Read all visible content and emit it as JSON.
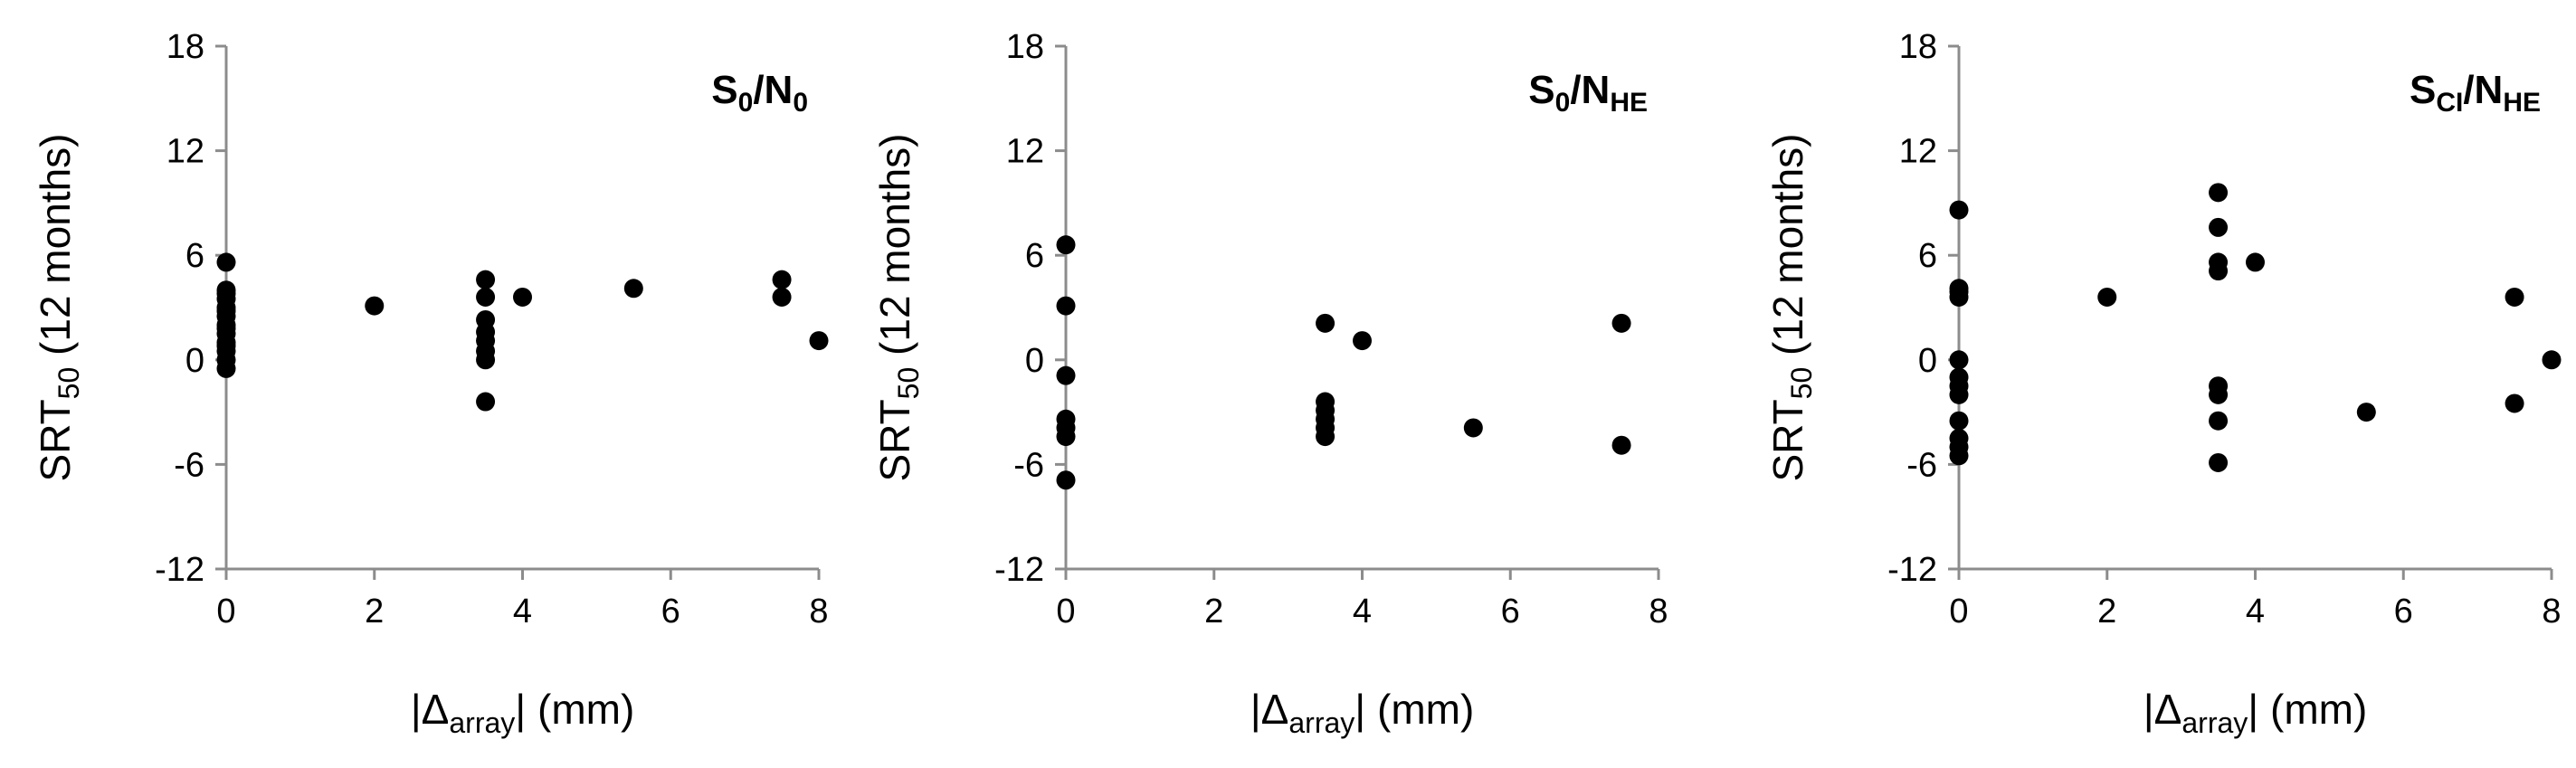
{
  "chart_data": [
    {
      "type": "scatter",
      "panel_label": {
        "base": "S",
        "sub1": "0",
        "sep": "/N",
        "sub2": "0"
      },
      "xlabel": {
        "pre": "|Δ",
        "sub": "array",
        "post": "| (mm)"
      },
      "ylabel": {
        "pre": "SRT",
        "sub": "50",
        "post": " (12 months)"
      },
      "xlim": [
        0,
        8
      ],
      "ylim": [
        -12,
        18
      ],
      "xticks": [
        "0",
        "2",
        "4",
        "6",
        "8"
      ],
      "yticks": [
        "-12",
        "-6",
        "0",
        "6",
        "12",
        "18"
      ],
      "grid": false,
      "legend": false,
      "x": [
        0,
        0,
        0,
        0,
        0,
        0,
        0,
        0,
        0,
        0,
        0,
        0,
        0,
        0,
        0,
        2,
        3.5,
        3.5,
        3.5,
        3.5,
        3.5,
        3.5,
        3.5,
        3.5,
        4,
        5.5,
        7.5,
        7.5,
        8
      ],
      "y": [
        5.6,
        4.0,
        3.5,
        3.0,
        2.5,
        2.0,
        1.5,
        1.0,
        0.5,
        0.0,
        -0.5,
        3.8,
        2.8,
        1.8,
        0.8,
        3.1,
        4.6,
        3.6,
        2.3,
        1.6,
        1.1,
        0.5,
        0.0,
        -2.4,
        3.6,
        4.1,
        4.6,
        3.6,
        1.1
      ]
    },
    {
      "type": "scatter",
      "panel_label": {
        "base": "S",
        "sub1": "0",
        "sep": "/N",
        "sub2": "HE"
      },
      "xlabel": {
        "pre": "|Δ",
        "sub": "array",
        "post": "| (mm)"
      },
      "ylabel": {
        "pre": "SRT",
        "sub": "50",
        "post": " (12 months)"
      },
      "xlim": [
        0,
        8
      ],
      "ylim": [
        -12,
        18
      ],
      "xticks": [
        "0",
        "2",
        "4",
        "6",
        "8"
      ],
      "yticks": [
        "-12",
        "-6",
        "0",
        "6",
        "12",
        "18"
      ],
      "grid": false,
      "legend": false,
      "x": [
        0,
        0,
        0,
        0,
        0,
        0,
        0,
        3.5,
        3.5,
        3.5,
        3.5,
        3.5,
        3.5,
        4,
        5.5,
        7.5,
        7.5
      ],
      "y": [
        6.6,
        3.1,
        -0.9,
        -3.4,
        -3.9,
        -4.4,
        -6.9,
        2.1,
        -2.4,
        -2.9,
        -3.4,
        -3.9,
        -4.4,
        1.1,
        -3.9,
        2.1,
        -4.9
      ]
    },
    {
      "type": "scatter",
      "panel_label": {
        "base": "S",
        "sub1": "CI",
        "sep": "/N",
        "sub2": "HE"
      },
      "xlabel": {
        "pre": "|Δ",
        "sub": "array",
        "post": "| (mm)"
      },
      "ylabel": {
        "pre": "SRT",
        "sub": "50",
        "post": " (12 months)"
      },
      "xlim": [
        0,
        8
      ],
      "ylim": [
        -12,
        18
      ],
      "xticks": [
        "0",
        "2",
        "4",
        "6",
        "8"
      ],
      "yticks": [
        "-12",
        "-6",
        "0",
        "6",
        "12",
        "18"
      ],
      "grid": false,
      "legend": false,
      "x": [
        0,
        0,
        0,
        0,
        0,
        0,
        0,
        0,
        0,
        0,
        0,
        0,
        2,
        3.5,
        3.5,
        3.5,
        3.5,
        3.5,
        3.5,
        3.5,
        3.5,
        4,
        5.5,
        7.5,
        7.5,
        8
      ],
      "y": [
        8.6,
        4.1,
        3.6,
        0.0,
        -1.0,
        -1.5,
        -2.0,
        -3.5,
        -4.5,
        -5.0,
        -5.5,
        3.9,
        3.6,
        9.6,
        7.6,
        5.6,
        5.1,
        -1.5,
        -2.0,
        -3.5,
        -5.9,
        5.6,
        -3.0,
        3.6,
        -2.5,
        0.0
      ]
    }
  ]
}
